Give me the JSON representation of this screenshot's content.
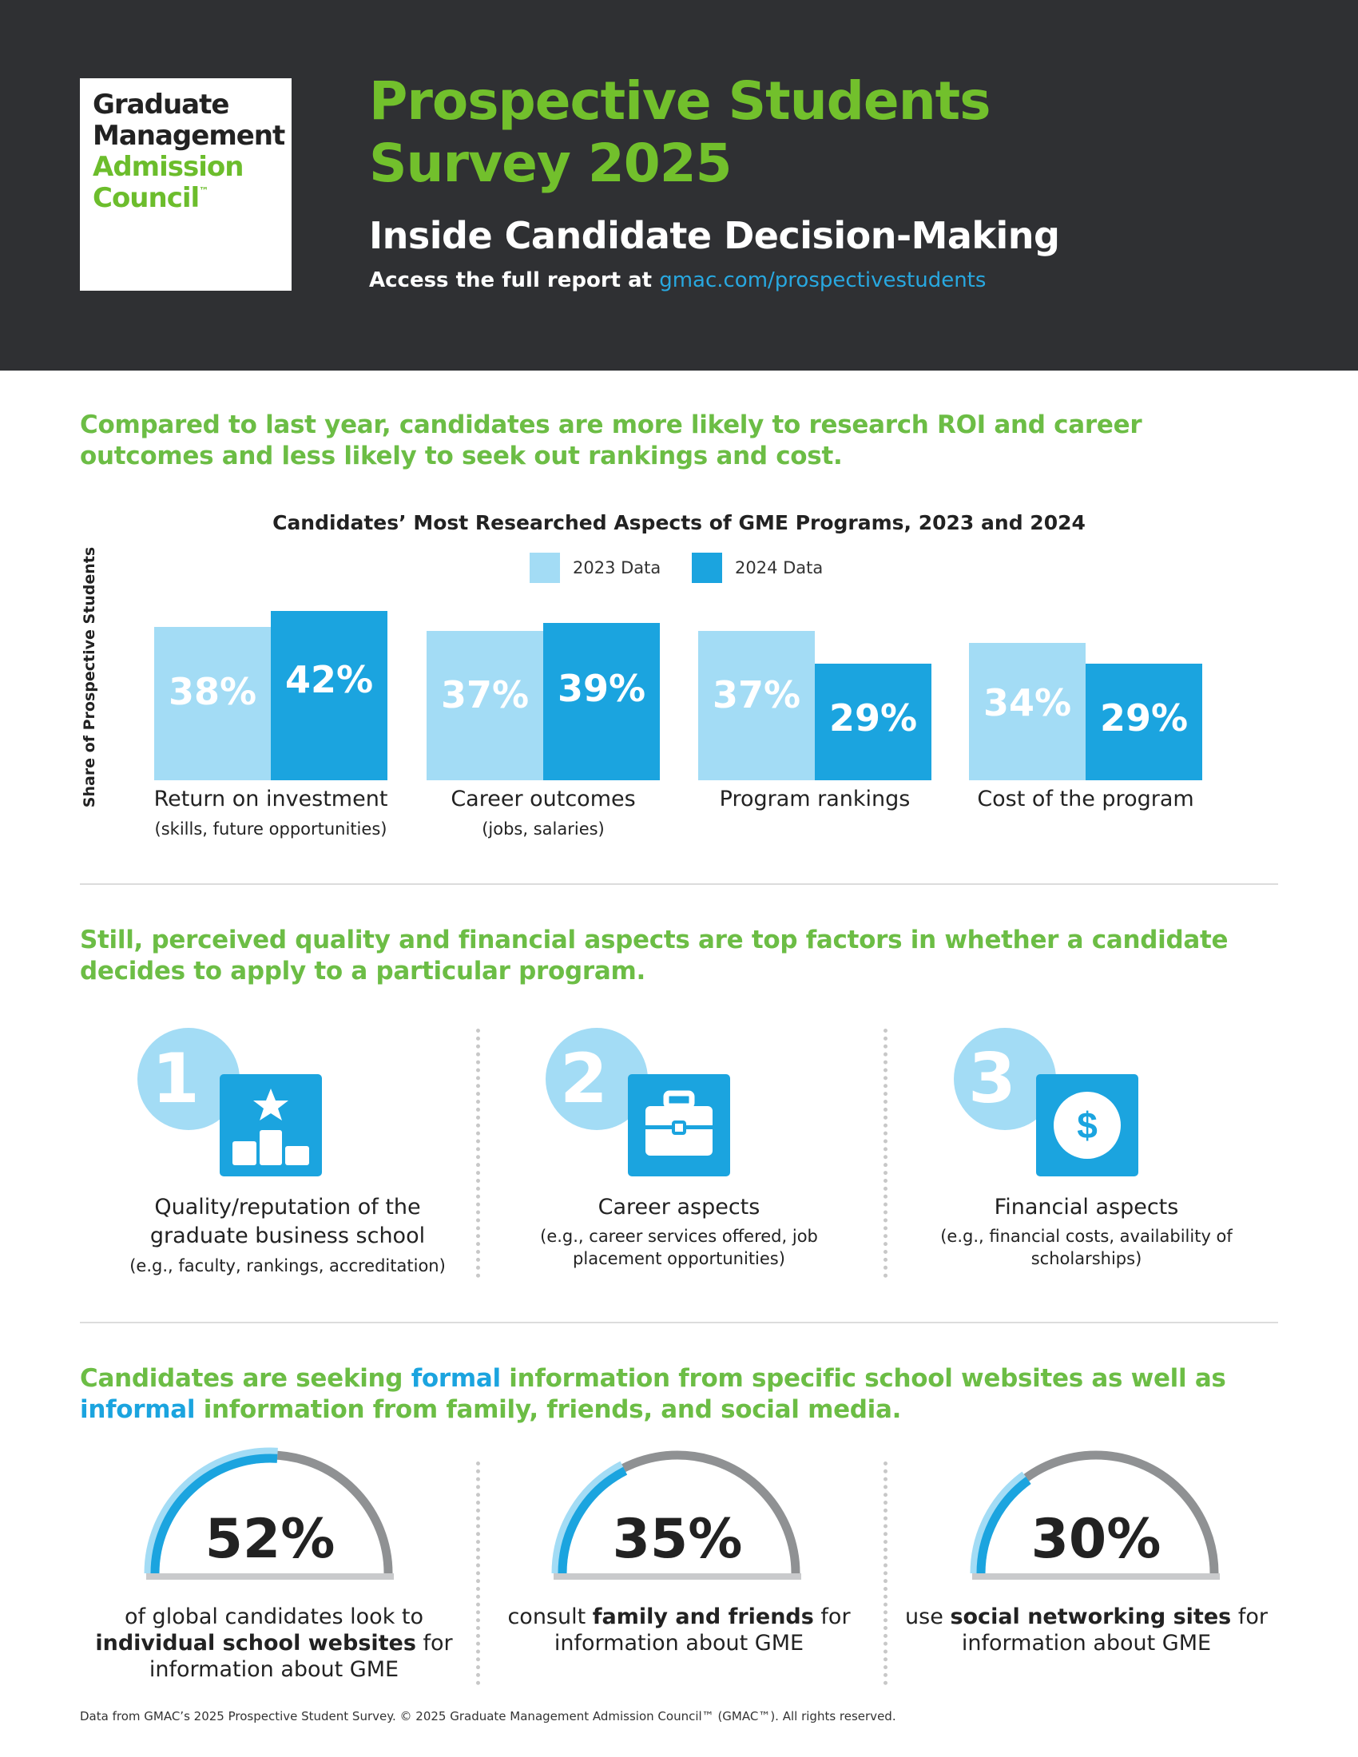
{
  "header": {
    "logo": {
      "line1": "Graduate",
      "line2": "Management",
      "line3": "Admission",
      "line4": "Council",
      "tm": "™"
    },
    "title_line1": "Prospective Students",
    "title_line2": "Survey 2025",
    "subtitle": "Inside Candidate Decision-Making",
    "access_text": "Access the full report at",
    "access_link": "gmac.com/prospectivestudents"
  },
  "section1": {
    "heading": "Compared to last year, candidates are more likely to research ROI and career outcomes and less likely to seek out rankings and cost."
  },
  "chart_data": {
    "type": "bar",
    "title": "Candidates’ Most Researched Aspects of GME Programs, 2023 and 2024",
    "ylabel": "Share of Prospective Students",
    "xlabel": "",
    "legend_position": "top-center",
    "categories": [
      "Return on investment",
      "Career outcomes",
      "Program rankings",
      "Cost of the program"
    ],
    "category_subs": [
      "(skills, future opportunities)",
      "(jobs, salaries)",
      "",
      ""
    ],
    "series": [
      {
        "name": "2023 Data",
        "color": "#a3dcf5",
        "values": [
          38,
          37,
          37,
          34
        ],
        "labels": [
          "38%",
          "37%",
          "37%",
          "34%"
        ]
      },
      {
        "name": "2024 Data",
        "color": "#1ba4df",
        "values": [
          42,
          39,
          29,
          29
        ],
        "labels": [
          "42%",
          "39%",
          "29%",
          "29%"
        ]
      }
    ],
    "ylim": [
      0,
      42
    ]
  },
  "section2": {
    "heading": "Still, perceived quality and financial aspects are top factors in whether a candidate decides to apply to a particular program.",
    "factors": [
      {
        "number": "1",
        "icon": "podium-star-icon",
        "title": "Quality/reputation of the graduate business school",
        "sub": "(e.g., faculty, rankings, accreditation)"
      },
      {
        "number": "2",
        "icon": "briefcase-icon",
        "title": "Career aspects",
        "sub": "(e.g., career services offered, job placement opportunities)"
      },
      {
        "number": "3",
        "icon": "dollar-coin-icon",
        "title": "Financial aspects",
        "sub": "(e.g., financial costs, availability of scholarships)"
      }
    ]
  },
  "section3": {
    "heading_part1": "Candidates are seeking ",
    "heading_formal": "formal",
    "heading_part2": " information from specific school websites as well as ",
    "heading_informal": "informal",
    "heading_part3": " information from family, friends, and social media.",
    "gauges": [
      {
        "value": 52,
        "label": "52%",
        "pre": "of global candidates look to",
        "bold": "individual school websites",
        "post": "for information about GME"
      },
      {
        "value": 35,
        "label": "35%",
        "pre": "consult",
        "bold": "family and friends",
        "post": "for information about GME"
      },
      {
        "value": 30,
        "label": "30%",
        "pre": "use",
        "bold": "social networking sites",
        "post": "for information about GME"
      }
    ]
  },
  "footer": {
    "text": "Data from GMAC’s 2025 Prospective Student Survey. © 2025 Graduate Management Admission Council™ (GMAC™). All rights reserved."
  },
  "colors": {
    "header_bg": "#2f3033",
    "green": "#6cbd45",
    "blue": "#1ba4df",
    "light_blue": "#a3dcf5",
    "gray": "#8f9193"
  }
}
